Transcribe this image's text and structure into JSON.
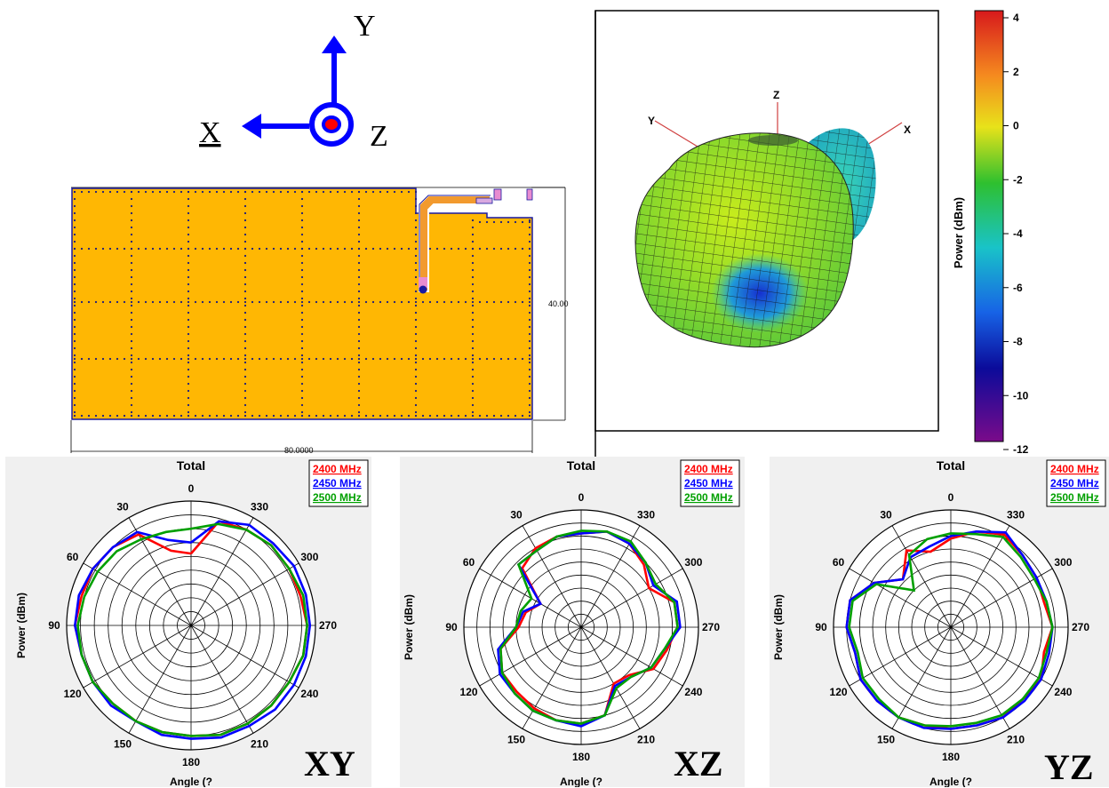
{
  "axes_legend": {
    "y_label": "Y",
    "x_label": "X",
    "z_label": "Z",
    "color": "#0000ff",
    "z_dot_color": "#ff0000"
  },
  "layout_view": {
    "board_color": "#ffb703",
    "board_outline": "#1a1aa0",
    "via_color": "#1a1a80",
    "feed_color": "#f29a2e",
    "pad_color": "#e88cd0",
    "width_label": "80.0000",
    "height_label": "40.00"
  },
  "pattern_3d": {
    "axis_labels": [
      "Y",
      "Z",
      "X"
    ],
    "colorbar_label": "Power  (dBm)",
    "colorbar_ticks": [
      "4",
      "2",
      "0",
      "-2",
      "-4",
      "-6",
      "-8",
      "-10",
      "-12"
    ]
  },
  "panel_tags": [
    "XY",
    "XZ",
    "YZ"
  ],
  "chart_data": [
    {
      "type": "polar-line",
      "title": "Total",
      "ylabel": "Power  (dBm)",
      "xlabel": "Angle  (?",
      "angle_labels": [
        "0",
        "30",
        "60",
        "90",
        "120",
        "150",
        "180",
        "210",
        "240",
        "270",
        "300",
        "330"
      ],
      "rlim": [
        -40,
        5
      ],
      "radial_rings": 9,
      "angles": [
        0,
        15,
        30,
        45,
        60,
        75,
        90,
        105,
        120,
        135,
        150,
        165,
        180,
        195,
        210,
        225,
        240,
        255,
        270,
        285,
        300,
        315,
        330,
        345
      ],
      "series": [
        {
          "name": "2400 MHz",
          "color": "#ff0000",
          "values": [
            -14,
            -12,
            -2,
            0,
            1,
            1,
            2,
            1,
            1,
            0,
            0,
            0,
            0,
            1,
            1,
            1,
            1,
            2,
            2,
            1,
            1,
            1,
            0,
            -1
          ]
        },
        {
          "name": "2450 MHz",
          "color": "#0000ff",
          "values": [
            -10,
            -8,
            -1,
            0,
            1,
            2,
            2,
            1,
            1,
            1,
            0,
            1,
            1,
            2,
            2,
            3,
            3,
            3,
            3,
            3,
            3,
            2,
            2,
            -1
          ]
        },
        {
          "name": "2500 MHz",
          "color": "#00a000",
          "values": [
            -5,
            -5,
            -4,
            -2,
            -1,
            0,
            1,
            1,
            1,
            0,
            0,
            0,
            0,
            1,
            1,
            1,
            1,
            2,
            2,
            2,
            1,
            1,
            0,
            -2
          ]
        }
      ]
    },
    {
      "type": "polar-line",
      "title": "Total",
      "ylabel": "Power  (dBm)",
      "xlabel": "Angle  (?",
      "angle_labels": [
        "0",
        "30",
        "60",
        "90",
        "120",
        "150",
        "180",
        "210",
        "240",
        "270",
        "300",
        "330"
      ],
      "rlim": [
        -40,
        5
      ],
      "radial_rings": 9,
      "angles": [
        0,
        15,
        30,
        45,
        60,
        75,
        90,
        105,
        120,
        135,
        150,
        165,
        180,
        195,
        210,
        225,
        240,
        255,
        270,
        285,
        300,
        315,
        330,
        345
      ],
      "series": [
        {
          "name": "2400 MHz",
          "color": "#ff0000",
          "values": [
            -4,
            -4,
            -5,
            -8,
            -22,
            -18,
            -16,
            -8,
            -5,
            -5,
            -4,
            -3,
            -3,
            -5,
            -15,
            -14,
            -8,
            -6,
            -3,
            -3,
            -10,
            -6,
            -3,
            -2
          ]
        },
        {
          "name": "2450 MHz",
          "color": "#0000ff",
          "values": [
            -4,
            -4,
            -6,
            -6,
            -22,
            -17,
            -15,
            -7,
            -4,
            -4,
            -3,
            -3,
            -2,
            -5,
            -14,
            -13,
            -9,
            -7,
            -2,
            -2,
            -8,
            -5,
            -3,
            -2
          ]
        },
        {
          "name": "2500 MHz",
          "color": "#00a000",
          "values": [
            -3,
            -4,
            -6,
            -6,
            -18,
            -16,
            -15,
            -8,
            -5,
            -4,
            -3,
            -3,
            -3,
            -5,
            -13,
            -13,
            -9,
            -7,
            -3,
            -3,
            -7,
            -5,
            -2,
            -2
          ]
        }
      ]
    },
    {
      "type": "polar-line",
      "title": "Total",
      "ylabel": "Power  (dBm)",
      "xlabel": "Angle  (?",
      "angle_labels": [
        "0",
        "30",
        "60",
        "90",
        "120",
        "150",
        "180",
        "210",
        "240",
        "270",
        "300",
        "330"
      ],
      "rlim": [
        -40,
        5
      ],
      "radial_rings": 9,
      "angles": [
        0,
        15,
        30,
        45,
        60,
        75,
        90,
        105,
        120,
        135,
        150,
        165,
        180,
        195,
        210,
        225,
        240,
        255,
        270,
        285,
        300,
        315,
        330,
        345
      ],
      "series": [
        {
          "name": "2400 MHz",
          "color": "#ff0000",
          "values": [
            -6,
            -10,
            -6,
            -14,
            -6,
            0,
            0,
            -2,
            0,
            0,
            0,
            -1,
            -1,
            -1,
            0,
            -1,
            0,
            -3,
            -1,
            -3,
            -2,
            -1,
            1,
            -2
          ]
        },
        {
          "name": "2450 MHz",
          "color": "#0000ff",
          "values": [
            -5,
            -8,
            -9,
            -14,
            -6,
            0,
            0,
            -2,
            0,
            0,
            0,
            0,
            -1,
            -1,
            0,
            0,
            0,
            -1,
            -1,
            -2,
            -2,
            -1,
            2,
            -2
          ]
        },
        {
          "name": "2500 MHz",
          "color": "#00a000",
          "values": [
            -4,
            -5,
            -8,
            -20,
            -7,
            -1,
            -1,
            -3,
            -1,
            -1,
            0,
            -1,
            -2,
            -2,
            -1,
            -1,
            -1,
            -2,
            -1,
            -2,
            -3,
            -2,
            0,
            -3
          ]
        }
      ]
    }
  ]
}
